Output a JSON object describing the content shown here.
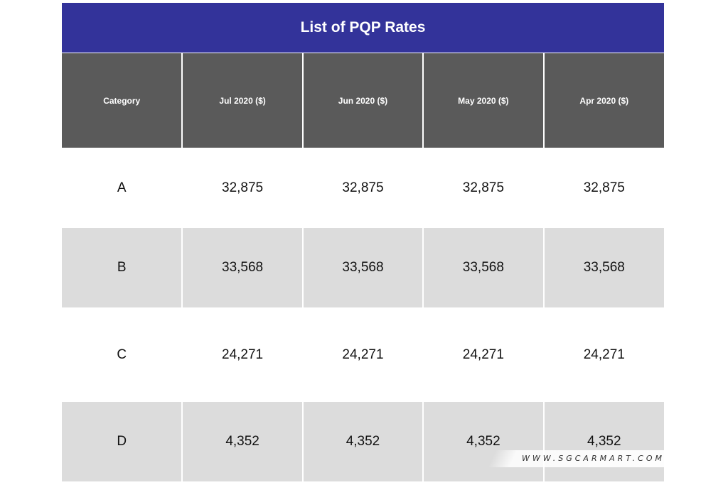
{
  "table": {
    "title": "List of PQP Rates",
    "headers": [
      "Category",
      "Jul 2020 ($)",
      "Jun 2020 ($)",
      "May 2020 ($)",
      "Apr 2020 ($)"
    ],
    "rows": [
      [
        "A",
        "32,875",
        "32,875",
        "32,875",
        "32,875"
      ],
      [
        "B",
        "33,568",
        "33,568",
        "33,568",
        "33,568"
      ],
      [
        "C",
        "24,271",
        "24,271",
        "24,271",
        "24,271"
      ],
      [
        "D",
        "4,352",
        "4,352",
        "4,352",
        "4,352"
      ]
    ]
  },
  "watermark": {
    "text": "WWW.SGCARMART.COM"
  },
  "colors": {
    "title_bg": "#33339a",
    "header_bg": "#5a5a5a",
    "stripe_bg": "#dcdcdc"
  }
}
